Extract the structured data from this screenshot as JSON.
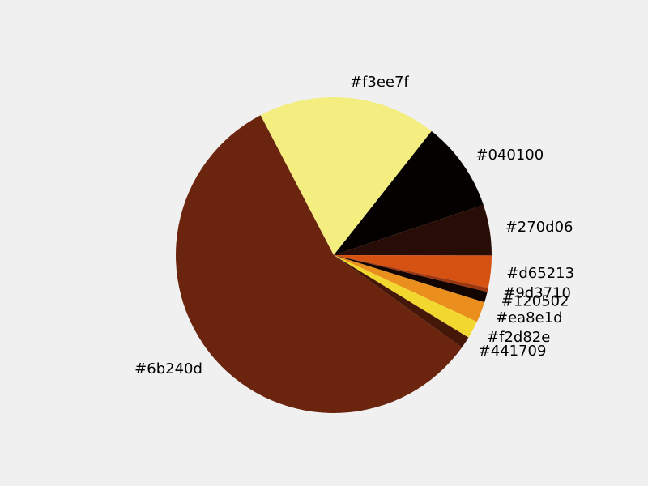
{
  "chart_data": {
    "type": "pie",
    "labels": [
      "#f3ee7f",
      "#040100",
      "#270d06",
      "#d65213",
      "#9d3710",
      "#120502",
      "#ea8e1d",
      "#f2d82e",
      "#441709",
      "#6b240d"
    ],
    "values": [
      18.3,
      9.2,
      5.2,
      3.3,
      0.4,
      1.1,
      2.1,
      1.8,
      1.2,
      57.4
    ],
    "colors": [
      "#f3ee7f",
      "#040100",
      "#270d06",
      "#d65213",
      "#9d3710",
      "#120502",
      "#ea8e1d",
      "#f2d82e",
      "#441709",
      "#6b240d"
    ],
    "start_angle_deg": 117.6,
    "direction": "clockwise"
  }
}
